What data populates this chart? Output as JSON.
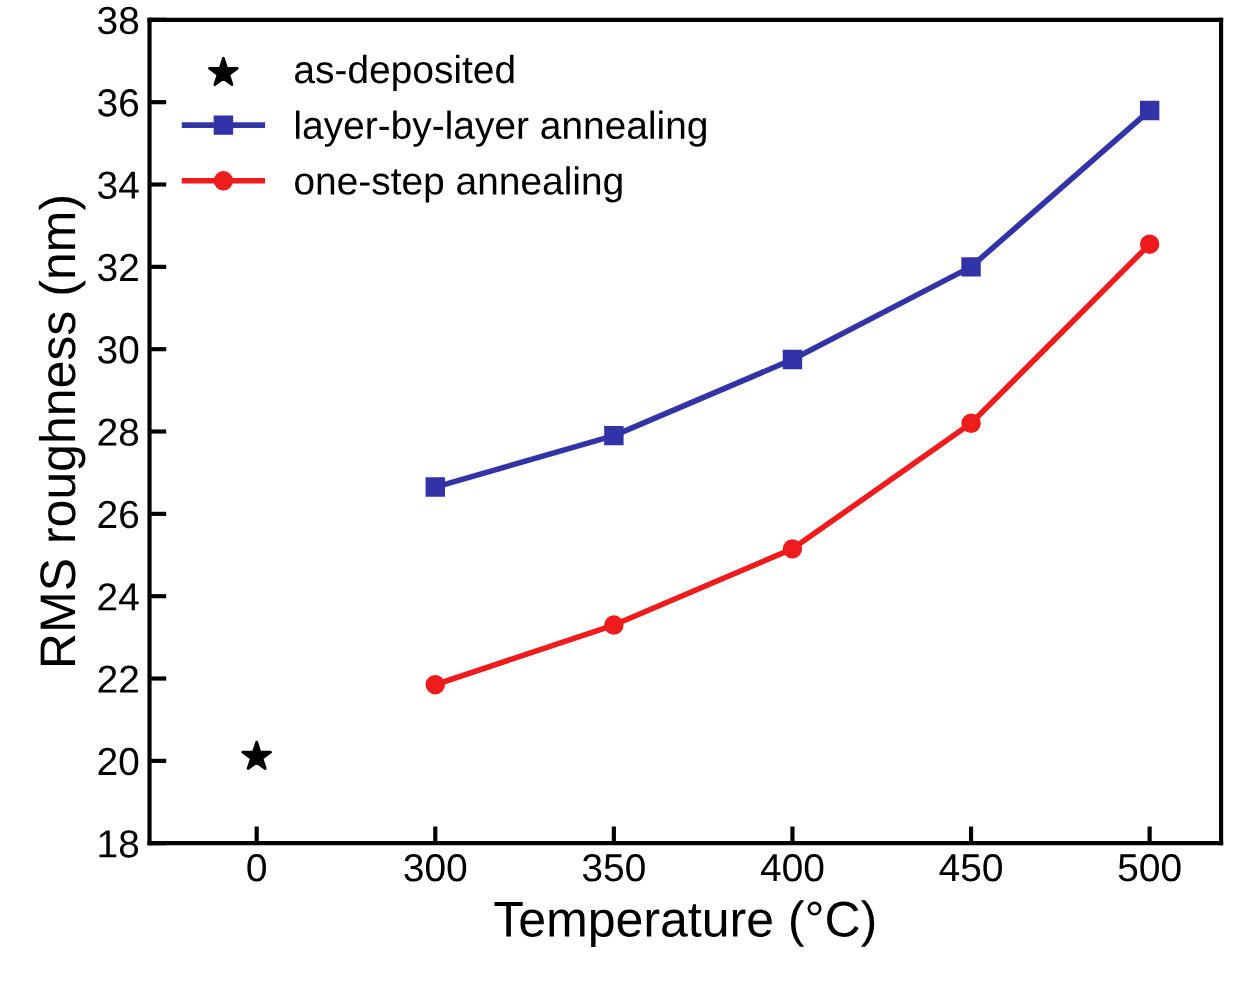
{
  "chart_data": {
    "type": "line",
    "xlabel": "Temperature (°C)",
    "ylabel": "RMS roughness (nm)",
    "categories": [
      "0",
      "300",
      "350",
      "400",
      "450",
      "500"
    ],
    "series": [
      {
        "name": "as-deposited",
        "type": "scatter",
        "marker": "star",
        "color": "#000000",
        "values": [
          20.1,
          null,
          null,
          null,
          null,
          null
        ]
      },
      {
        "name": "layer-by-layer annealing",
        "marker": "square",
        "color": "#3333a8",
        "values": [
          null,
          26.65,
          27.9,
          29.75,
          32.0,
          35.8
        ]
      },
      {
        "name": "one-step annealing",
        "marker": "circle",
        "color": "#ee1c1c",
        "values": [
          null,
          21.85,
          23.3,
          25.15,
          28.2,
          32.55
        ]
      }
    ],
    "ylim": [
      18,
      38
    ],
    "yticks": [
      18,
      20,
      22,
      24,
      26,
      28,
      30,
      32,
      34,
      36,
      38
    ],
    "grid": false,
    "legend": "top left",
    "line_style": "solid"
  }
}
